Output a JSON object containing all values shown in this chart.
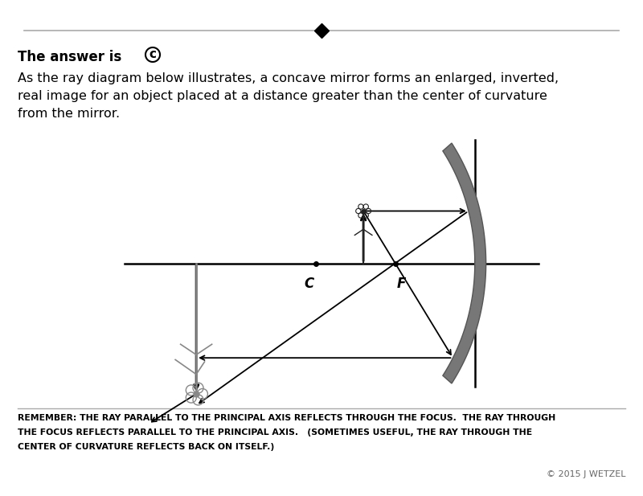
{
  "bg_color": "#ffffff",
  "top_line_color": "#999999",
  "diamond_color": "#000000",
  "answer_text": "The answer is ",
  "answer_c": "c",
  "body_text1": "As the ray diagram below illustrates, a concave mirror forms an enlarged, inverted,",
  "body_text2": "real image for an object placed at a distance greater than the center of curvature",
  "body_text3": "from the mirror.",
  "remember_line1": "REMEMBER: THE RAY PARALLEL TO THE PRINCIPAL AXIS REFLECTS THROUGH THE FOCUS.  THE RAY THROUGH",
  "remember_line2": "THE FOCUS REFLECTS PARALLEL TO THE PRINCIPAL AXIS.   (SOMETIMES USEFUL, THE RAY THROUGH THE",
  "remember_line3": "CENTER OF CURVATURE REFLECTS BACK ON ITSELF.)",
  "copyright_text": "© 2015 J WETZEL",
  "label_C": "C",
  "label_F": "F",
  "mirror_color": "#777777",
  "mirror_dark": "#555555",
  "ray_color": "#000000",
  "axis_color": "#000000"
}
